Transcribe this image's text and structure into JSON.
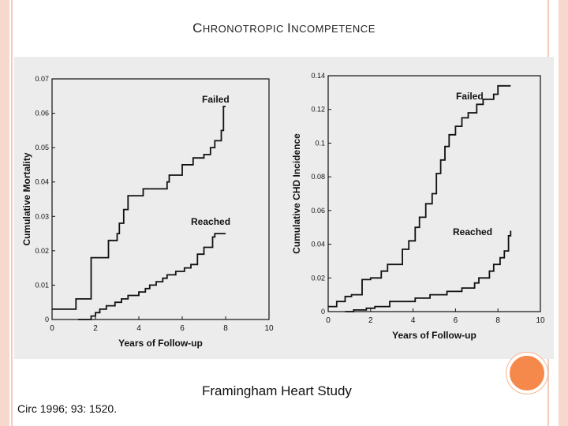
{
  "slide": {
    "title_parts": [
      {
        "cap": "C",
        "rest": "HRONOTROPIC "
      },
      {
        "cap": "I",
        "rest": "NCOMPETENCE"
      }
    ],
    "source_caption": "Framingham Heart Study",
    "citation": "Circ 1996; 93: 1520."
  },
  "colors": {
    "panel_bg": "#ececec",
    "line": "#111111",
    "accent": "#f5894c",
    "border": "#f6d8cc"
  },
  "chart_data": [
    {
      "type": "line",
      "title": "",
      "xlabel": "Years of Follow-up",
      "ylabel": "Cumulative Mortality",
      "xlim": [
        0,
        10
      ],
      "ylim": [
        0,
        0.07
      ],
      "x_ticks": [
        "0",
        "2",
        "4",
        "6",
        "8",
        "10"
      ],
      "y_ticks": [
        "0",
        "0.01",
        "0.02",
        "0.03",
        "0.04",
        "0.05",
        "0.06",
        "0.07"
      ],
      "series": [
        {
          "name": "Failed",
          "points": [
            [
              0,
              0.003
            ],
            [
              1.1,
              0.003
            ],
            [
              1.1,
              0.006
            ],
            [
              1.8,
              0.006
            ],
            [
              1.8,
              0.018
            ],
            [
              2.6,
              0.018
            ],
            [
              2.6,
              0.023
            ],
            [
              3,
              0.023
            ],
            [
              3,
              0.025
            ],
            [
              3.1,
              0.025
            ],
            [
              3.1,
              0.028
            ],
            [
              3.3,
              0.028
            ],
            [
              3.3,
              0.032
            ],
            [
              3.5,
              0.032
            ],
            [
              3.5,
              0.036
            ],
            [
              4.2,
              0.036
            ],
            [
              4.2,
              0.038
            ],
            [
              5.3,
              0.038
            ],
            [
              5.3,
              0.04
            ],
            [
              5.4,
              0.04
            ],
            [
              5.4,
              0.042
            ],
            [
              6,
              0.042
            ],
            [
              6,
              0.045
            ],
            [
              6.5,
              0.045
            ],
            [
              6.5,
              0.047
            ],
            [
              7,
              0.047
            ],
            [
              7,
              0.048
            ],
            [
              7.3,
              0.048
            ],
            [
              7.3,
              0.05
            ],
            [
              7.5,
              0.05
            ],
            [
              7.5,
              0.052
            ],
            [
              7.8,
              0.052
            ],
            [
              7.8,
              0.055
            ],
            [
              7.9,
              0.055
            ],
            [
              7.9,
              0.062
            ],
            [
              8,
              0.062
            ]
          ]
        },
        {
          "name": "Reached",
          "points": [
            [
              1.2,
              0
            ],
            [
              1.8,
              0
            ],
            [
              1.8,
              0.001
            ],
            [
              2.0,
              0.001
            ],
            [
              2.0,
              0.002
            ],
            [
              2.2,
              0.002
            ],
            [
              2.2,
              0.003
            ],
            [
              2.5,
              0.003
            ],
            [
              2.5,
              0.004
            ],
            [
              2.9,
              0.004
            ],
            [
              2.9,
              0.005
            ],
            [
              3.2,
              0.005
            ],
            [
              3.2,
              0.006
            ],
            [
              3.5,
              0.006
            ],
            [
              3.5,
              0.007
            ],
            [
              4.0,
              0.007
            ],
            [
              4.0,
              0.008
            ],
            [
              4.3,
              0.008
            ],
            [
              4.3,
              0.009
            ],
            [
              4.5,
              0.009
            ],
            [
              4.5,
              0.01
            ],
            [
              4.8,
              0.01
            ],
            [
              4.8,
              0.011
            ],
            [
              5.1,
              0.011
            ],
            [
              5.1,
              0.012
            ],
            [
              5.3,
              0.012
            ],
            [
              5.3,
              0.013
            ],
            [
              5.7,
              0.013
            ],
            [
              5.7,
              0.014
            ],
            [
              6.1,
              0.014
            ],
            [
              6.1,
              0.015
            ],
            [
              6.4,
              0.015
            ],
            [
              6.4,
              0.016
            ],
            [
              6.7,
              0.016
            ],
            [
              6.7,
              0.019
            ],
            [
              7.0,
              0.019
            ],
            [
              7.0,
              0.021
            ],
            [
              7.4,
              0.021
            ],
            [
              7.4,
              0.024
            ],
            [
              7.5,
              0.024
            ],
            [
              7.5,
              0.025
            ],
            [
              8,
              0.025
            ]
          ]
        }
      ]
    },
    {
      "type": "line",
      "title": "",
      "xlabel": "Years of Follow-up",
      "ylabel": "Cumulative CHD Incidence",
      "xlim": [
        0,
        10
      ],
      "ylim": [
        0,
        0.14
      ],
      "x_ticks": [
        "0",
        "2",
        "4",
        "6",
        "8",
        "10"
      ],
      "y_ticks": [
        "0",
        "0.02",
        "0.04",
        "0.06",
        "0.08",
        "0.1",
        "0.12",
        "0.14"
      ],
      "series": [
        {
          "name": "Failed",
          "points": [
            [
              0,
              0.003
            ],
            [
              0.4,
              0.003
            ],
            [
              0.4,
              0.006
            ],
            [
              0.8,
              0.006
            ],
            [
              0.8,
              0.009
            ],
            [
              1.1,
              0.009
            ],
            [
              1.1,
              0.01
            ],
            [
              1.6,
              0.01
            ],
            [
              1.6,
              0.019
            ],
            [
              2.0,
              0.019
            ],
            [
              2.0,
              0.02
            ],
            [
              2.5,
              0.02
            ],
            [
              2.5,
              0.024
            ],
            [
              2.8,
              0.024
            ],
            [
              2.8,
              0.028
            ],
            [
              3.5,
              0.028
            ],
            [
              3.5,
              0.037
            ],
            [
              3.8,
              0.037
            ],
            [
              3.8,
              0.042
            ],
            [
              4.1,
              0.042
            ],
            [
              4.1,
              0.05
            ],
            [
              4.3,
              0.05
            ],
            [
              4.3,
              0.056
            ],
            [
              4.6,
              0.056
            ],
            [
              4.6,
              0.064
            ],
            [
              4.9,
              0.064
            ],
            [
              4.9,
              0.07
            ],
            [
              5.1,
              0.07
            ],
            [
              5.1,
              0.082
            ],
            [
              5.3,
              0.082
            ],
            [
              5.3,
              0.09
            ],
            [
              5.5,
              0.09
            ],
            [
              5.5,
              0.098
            ],
            [
              5.7,
              0.098
            ],
            [
              5.7,
              0.105
            ],
            [
              6.0,
              0.105
            ],
            [
              6.0,
              0.11
            ],
            [
              6.3,
              0.11
            ],
            [
              6.3,
              0.115
            ],
            [
              6.6,
              0.115
            ],
            [
              6.6,
              0.118
            ],
            [
              7.0,
              0.118
            ],
            [
              7.0,
              0.123
            ],
            [
              7.3,
              0.123
            ],
            [
              7.3,
              0.126
            ],
            [
              7.8,
              0.126
            ],
            [
              7.8,
              0.129
            ],
            [
              8.0,
              0.129
            ],
            [
              8.0,
              0.134
            ],
            [
              8.6,
              0.134
            ]
          ]
        },
        {
          "name": "Reached",
          "points": [
            [
              0.8,
              0
            ],
            [
              1.2,
              0
            ],
            [
              1.2,
              0.001
            ],
            [
              1.8,
              0.001
            ],
            [
              1.8,
              0.002
            ],
            [
              2.2,
              0.002
            ],
            [
              2.2,
              0.003
            ],
            [
              2.9,
              0.003
            ],
            [
              2.9,
              0.006
            ],
            [
              4.1,
              0.006
            ],
            [
              4.1,
              0.008
            ],
            [
              4.8,
              0.008
            ],
            [
              4.8,
              0.01
            ],
            [
              5.6,
              0.01
            ],
            [
              5.6,
              0.012
            ],
            [
              6.3,
              0.012
            ],
            [
              6.3,
              0.014
            ],
            [
              6.9,
              0.014
            ],
            [
              6.9,
              0.017
            ],
            [
              7.1,
              0.017
            ],
            [
              7.1,
              0.02
            ],
            [
              7.6,
              0.02
            ],
            [
              7.6,
              0.024
            ],
            [
              7.8,
              0.024
            ],
            [
              7.8,
              0.028
            ],
            [
              8.1,
              0.028
            ],
            [
              8.1,
              0.032
            ],
            [
              8.3,
              0.032
            ],
            [
              8.3,
              0.036
            ],
            [
              8.5,
              0.036
            ],
            [
              8.5,
              0.045
            ],
            [
              8.6,
              0.045
            ],
            [
              8.6,
              0.048
            ]
          ]
        }
      ]
    }
  ]
}
